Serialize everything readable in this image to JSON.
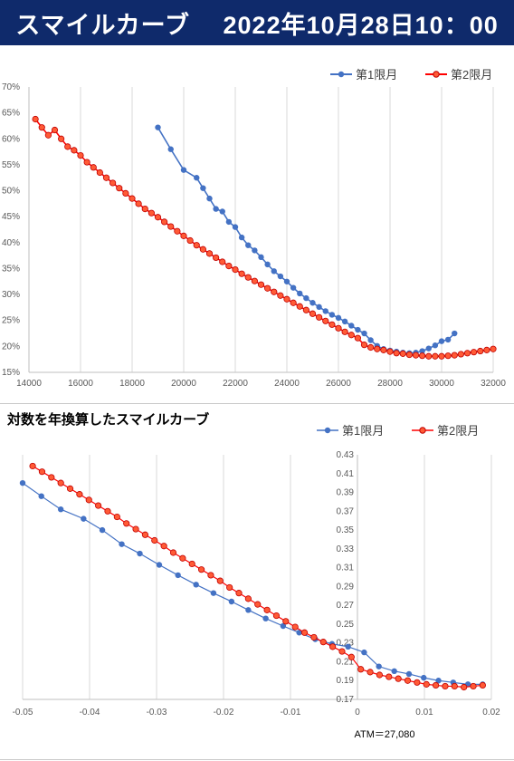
{
  "header": {
    "title": "スマイルカーブ　 2022年10月28日10：00"
  },
  "chart_data": [
    {
      "type": "line",
      "title": "",
      "xlabel": "",
      "ylabel": "",
      "xlim": [
        14000,
        32000
      ],
      "ylim": [
        15,
        70
      ],
      "x_ticks": [
        "14000",
        "16000",
        "18000",
        "20000",
        "22000",
        "24000",
        "26000",
        "28000",
        "30000",
        "32000"
      ],
      "y_ticks": [
        "15%",
        "20%",
        "25%",
        "30%",
        "35%",
        "40%",
        "45%",
        "50%",
        "55%",
        "60%",
        "65%",
        "70%"
      ],
      "grid": "vertical",
      "legend_position": "top-right",
      "series": [
        {
          "name": "第1限月",
          "color": "#4472c4",
          "x": [
            19000,
            19500,
            20000,
            20500,
            20750,
            21000,
            21250,
            21500,
            21750,
            22000,
            22250,
            22500,
            22750,
            23000,
            23250,
            23500,
            23750,
            24000,
            24250,
            24500,
            24750,
            25000,
            25250,
            25500,
            25750,
            26000,
            26250,
            26500,
            26750,
            27000,
            27250,
            27500,
            27750,
            28000,
            28250,
            28500,
            28750,
            29000,
            29250,
            29500,
            29750,
            30000,
            30250,
            30500
          ],
          "y": [
            62.2,
            58.0,
            54.0,
            52.5,
            50.5,
            48.5,
            46.5,
            46.0,
            44.0,
            43.0,
            41.0,
            39.5,
            38.5,
            37.2,
            35.8,
            34.5,
            33.5,
            32.5,
            31.3,
            30.2,
            29.3,
            28.4,
            27.6,
            26.8,
            26.1,
            25.5,
            24.8,
            24.0,
            23.2,
            22.5,
            21.2,
            20.1,
            19.5,
            19.2,
            19.0,
            18.8,
            18.7,
            18.8,
            19.1,
            19.6,
            20.2,
            21.0,
            21.3,
            22.5
          ]
        },
        {
          "name": "第2限月",
          "color": "#ff0000",
          "x": [
            14250,
            14500,
            14750,
            15000,
            15250,
            15500,
            15750,
            16000,
            16250,
            16500,
            16750,
            17000,
            17250,
            17500,
            17750,
            18000,
            18250,
            18500,
            18750,
            19000,
            19250,
            19500,
            19750,
            20000,
            20250,
            20500,
            20750,
            21000,
            21250,
            21500,
            21750,
            22000,
            22250,
            22500,
            22750,
            23000,
            23250,
            23500,
            23750,
            24000,
            24250,
            24500,
            24750,
            25000,
            25250,
            25500,
            25750,
            26000,
            26250,
            26500,
            26750,
            27000,
            27250,
            27500,
            27750,
            28000,
            28250,
            28500,
            28750,
            29000,
            29250,
            29500,
            29750,
            30000,
            30250,
            30500,
            30750,
            31000,
            31250,
            31500,
            31750,
            32000
          ],
          "y": [
            63.8,
            62.2,
            60.7,
            61.7,
            60.0,
            58.5,
            57.8,
            56.8,
            55.5,
            54.5,
            53.5,
            52.5,
            51.5,
            50.5,
            49.5,
            48.5,
            47.5,
            46.5,
            45.7,
            44.9,
            44.0,
            43.1,
            42.2,
            41.3,
            40.4,
            39.5,
            38.7,
            37.9,
            37.1,
            36.3,
            35.5,
            34.8,
            34.0,
            33.3,
            32.6,
            31.9,
            31.2,
            30.5,
            29.8,
            29.1,
            28.4,
            27.7,
            27.0,
            26.3,
            25.6,
            24.9,
            24.2,
            23.5,
            22.8,
            22.2,
            21.6,
            20.3,
            19.8,
            19.5,
            19.3,
            19.0,
            18.7,
            18.6,
            18.4,
            18.3,
            18.2,
            18.1,
            18.1,
            18.1,
            18.2,
            18.3,
            18.5,
            18.7,
            18.9,
            19.1,
            19.3,
            19.5
          ]
        }
      ]
    },
    {
      "type": "line",
      "title": "対数を年換算したスマイルカーブ",
      "xlabel": "",
      "ylabel": "",
      "xlim": [
        -0.05,
        0.02
      ],
      "ylim": [
        0.17,
        0.43
      ],
      "x_ticks": [
        "-0.05",
        "-0.04",
        "-0.03",
        "-0.02",
        "-0.01",
        "0",
        "0.01",
        "0.02"
      ],
      "y_ticks": [
        "0.17",
        "0.19",
        "0.21",
        "0.23",
        "0.25",
        "0.27",
        "0.29",
        "0.31",
        "0.33",
        "0.35",
        "0.37",
        "0.39",
        "0.41",
        "0.43"
      ],
      "grid": "vertical",
      "legend_position": "top-right",
      "annotation": "ATM＝27,080",
      "series": [
        {
          "name": "第1限月",
          "color": "#4472c4",
          "x": [
            -0.05,
            -0.0472,
            -0.0443,
            -0.0409,
            -0.0381,
            -0.0352,
            -0.0325,
            -0.0296,
            -0.0268,
            -0.0241,
            -0.0215,
            -0.0188,
            -0.0163,
            -0.0137,
            -0.0111,
            -0.0087,
            -0.0063,
            -0.0038,
            -0.0014,
            0.001,
            0.0032,
            0.0055,
            0.0077,
            0.0099,
            0.0121,
            0.0143,
            0.0165,
            0.0187
          ],
          "y": [
            0.4,
            0.386,
            0.372,
            0.362,
            0.35,
            0.335,
            0.325,
            0.313,
            0.302,
            0.292,
            0.283,
            0.274,
            0.265,
            0.256,
            0.248,
            0.241,
            0.234,
            0.229,
            0.226,
            0.22,
            0.205,
            0.2,
            0.197,
            0.193,
            0.19,
            0.188,
            0.186,
            0.186
          ]
        },
        {
          "name": "第2限月",
          "color": "#ff0000",
          "x": [
            -0.0485,
            -0.0471,
            -0.0457,
            -0.0443,
            -0.0429,
            -0.0415,
            -0.0401,
            -0.0387,
            -0.0373,
            -0.0359,
            -0.0345,
            -0.0331,
            -0.0317,
            -0.0303,
            -0.0289,
            -0.0275,
            -0.0261,
            -0.0247,
            -0.0233,
            -0.0219,
            -0.0205,
            -0.0191,
            -0.0177,
            -0.0163,
            -0.0149,
            -0.0135,
            -0.0121,
            -0.0107,
            -0.0093,
            -0.0079,
            -0.0065,
            -0.0051,
            -0.0037,
            -0.0023,
            -0.0009,
            0.0005,
            0.0019,
            0.0033,
            0.0047,
            0.0061,
            0.0075,
            0.0089,
            0.0103,
            0.0117,
            0.0131,
            0.0145,
            0.0159,
            0.0173,
            0.0187
          ],
          "y": [
            0.418,
            0.412,
            0.406,
            0.4,
            0.394,
            0.388,
            0.382,
            0.376,
            0.37,
            0.364,
            0.357,
            0.351,
            0.345,
            0.339,
            0.333,
            0.326,
            0.32,
            0.314,
            0.308,
            0.302,
            0.296,
            0.289,
            0.283,
            0.277,
            0.271,
            0.265,
            0.259,
            0.253,
            0.247,
            0.241,
            0.236,
            0.231,
            0.226,
            0.221,
            0.215,
            0.202,
            0.199,
            0.196,
            0.194,
            0.192,
            0.19,
            0.188,
            0.186,
            0.185,
            0.184,
            0.184,
            0.183,
            0.184,
            0.185
          ]
        }
      ]
    }
  ]
}
